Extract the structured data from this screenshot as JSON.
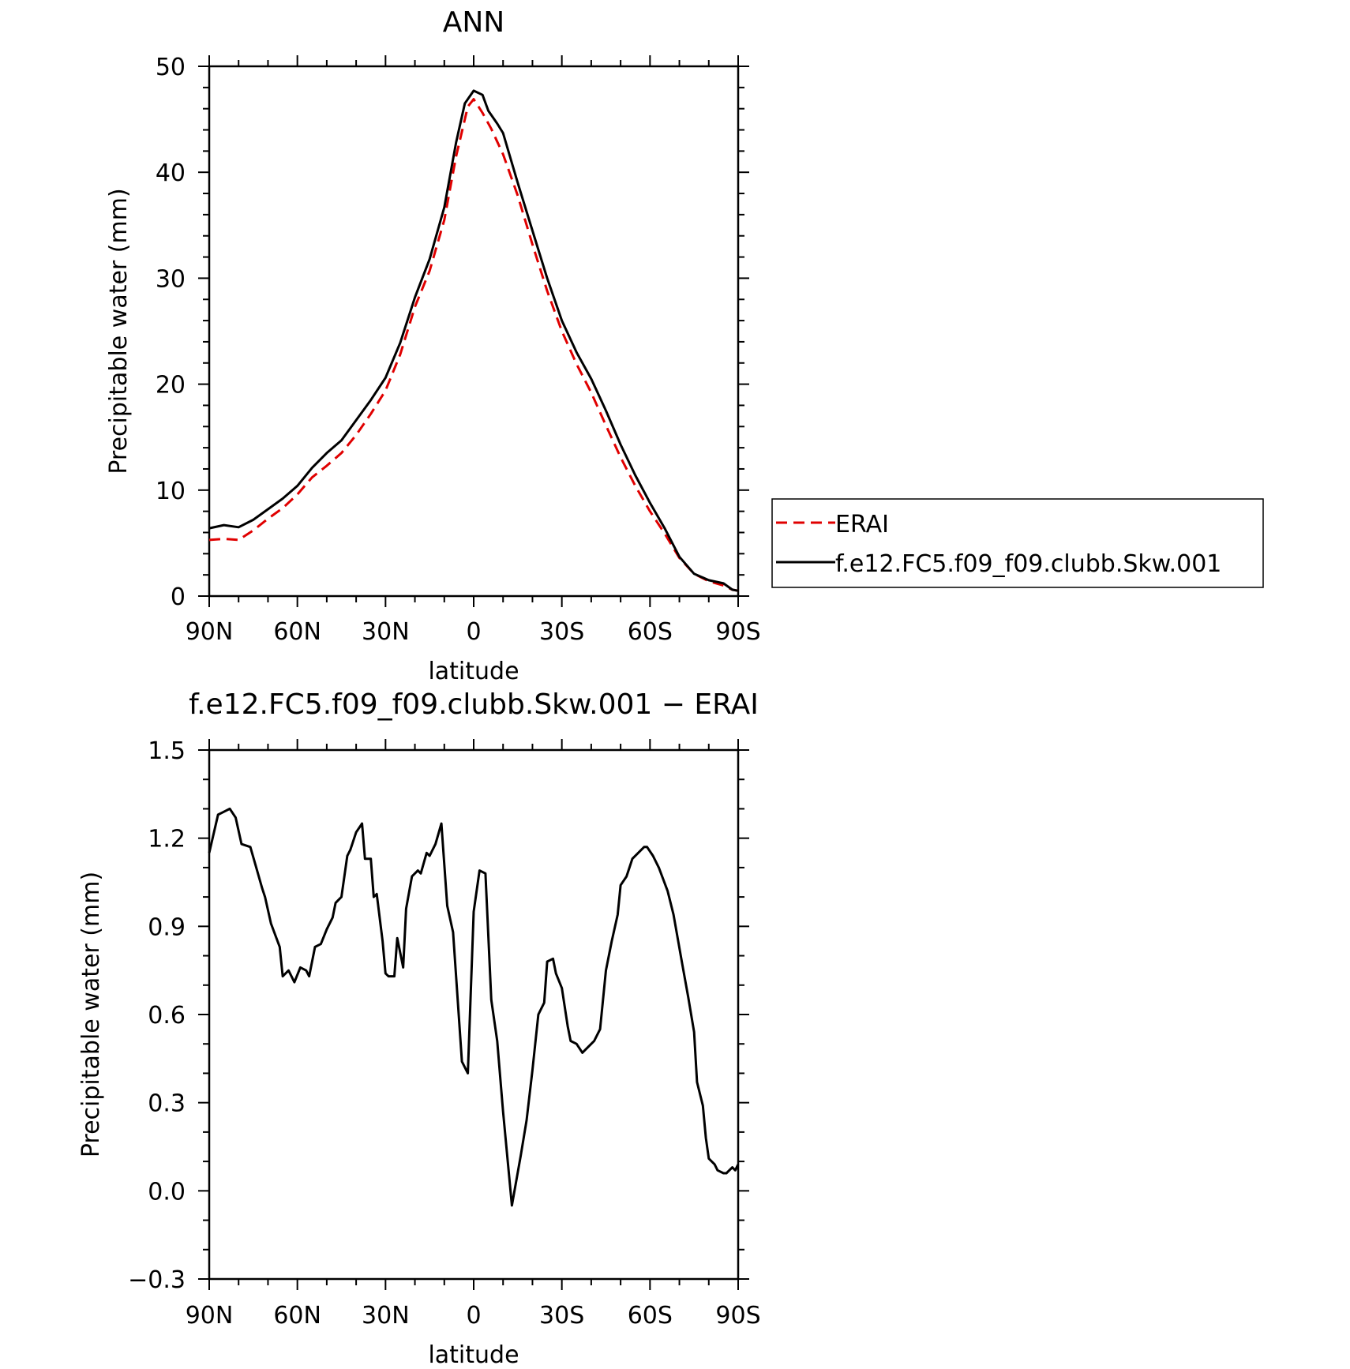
{
  "chart_data": [
    {
      "type": "line",
      "title": "ANN",
      "xlabel": "latitude",
      "ylabel": "Precipitable water (mm)",
      "xlim": [
        90,
        -90
      ],
      "ylim": [
        0,
        50
      ],
      "x_ticks": [
        90,
        60,
        30,
        0,
        -30,
        -60,
        -90
      ],
      "x_tick_labels": [
        "90N",
        "60N",
        "30N",
        "0",
        "30S",
        "60S",
        "90S"
      ],
      "y_ticks": [
        0,
        10,
        20,
        30,
        40,
        50
      ],
      "y_tick_labels": [
        "0",
        "10",
        "20",
        "30",
        "40",
        "50"
      ],
      "legend_position": "right",
      "series": [
        {
          "name": "ERAI",
          "color": "#e00000",
          "style": "dashed",
          "points": [
            [
              90,
              5.3
            ],
            [
              85,
              5.4
            ],
            [
              80,
              5.3
            ],
            [
              75,
              6.2
            ],
            [
              70,
              7.3
            ],
            [
              65,
              8.3
            ],
            [
              60,
              9.6
            ],
            [
              55,
              11.2
            ],
            [
              50,
              12.3
            ],
            [
              45,
              13.5
            ],
            [
              40,
              15.2
            ],
            [
              35,
              17.2
            ],
            [
              30,
              19.4
            ],
            [
              25,
              22.8
            ],
            [
              20,
              27.3
            ],
            [
              15,
              30.7
            ],
            [
              10,
              35.5
            ],
            [
              6,
              41.5
            ],
            [
              2,
              46.2
            ],
            [
              0,
              46.9
            ],
            [
              -3,
              45.6
            ],
            [
              -6,
              44.1
            ],
            [
              -10,
              41.7
            ],
            [
              -15,
              37.8
            ],
            [
              -20,
              33.2
            ],
            [
              -25,
              28.8
            ],
            [
              -30,
              25.0
            ],
            [
              -35,
              21.9
            ],
            [
              -40,
              19.2
            ],
            [
              -45,
              16.1
            ],
            [
              -50,
              13.1
            ],
            [
              -55,
              10.4
            ],
            [
              -60,
              8.0
            ],
            [
              -65,
              5.9
            ],
            [
              -70,
              3.6
            ],
            [
              -75,
              2.1
            ],
            [
              -80,
              1.4
            ],
            [
              -85,
              1.0
            ],
            [
              -88,
              0.6
            ],
            [
              -90,
              0.5
            ]
          ]
        },
        {
          "name": "f.e12.FC5.f09_f09.clubb.Skw.001",
          "color": "#000000",
          "style": "solid",
          "points": [
            [
              90,
              6.4
            ],
            [
              85,
              6.7
            ],
            [
              80,
              6.5
            ],
            [
              75,
              7.2
            ],
            [
              70,
              8.2
            ],
            [
              65,
              9.2
            ],
            [
              60,
              10.4
            ],
            [
              55,
              12.1
            ],
            [
              50,
              13.5
            ],
            [
              45,
              14.7
            ],
            [
              40,
              16.6
            ],
            [
              35,
              18.5
            ],
            [
              30,
              20.6
            ],
            [
              25,
              23.9
            ],
            [
              20,
              28.2
            ],
            [
              15,
              31.8
            ],
            [
              10,
              36.7
            ],
            [
              6,
              42.8
            ],
            [
              3,
              46.5
            ],
            [
              0,
              47.7
            ],
            [
              -3,
              47.3
            ],
            [
              -5,
              45.8
            ],
            [
              -8,
              44.6
            ],
            [
              -10,
              43.7
            ],
            [
              -15,
              39.0
            ],
            [
              -20,
              34.5
            ],
            [
              -25,
              30.0
            ],
            [
              -30,
              26.0
            ],
            [
              -35,
              23.0
            ],
            [
              -40,
              20.5
            ],
            [
              -45,
              17.5
            ],
            [
              -50,
              14.3
            ],
            [
              -55,
              11.4
            ],
            [
              -60,
              8.8
            ],
            [
              -65,
              6.4
            ],
            [
              -70,
              3.7
            ],
            [
              -75,
              2.1
            ],
            [
              -80,
              1.5
            ],
            [
              -85,
              1.2
            ],
            [
              -88,
              0.6
            ],
            [
              -90,
              0.5
            ]
          ]
        }
      ]
    },
    {
      "type": "line",
      "title": "f.e12.FC5.f09_f09.clubb.Skw.001 − ERAI",
      "xlabel": "latitude",
      "ylabel": "Precipitable water (mm)",
      "xlim": [
        90,
        -90
      ],
      "ylim": [
        -0.3,
        1.5
      ],
      "x_ticks": [
        90,
        60,
        30,
        0,
        -30,
        -60,
        -90
      ],
      "x_tick_labels": [
        "90N",
        "60N",
        "30N",
        "0",
        "30S",
        "60S",
        "90S"
      ],
      "y_ticks": [
        -0.3,
        0.0,
        0.3,
        0.6,
        0.9,
        1.2,
        1.5
      ],
      "y_tick_labels": [
        "−0.3",
        "0.0",
        "0.3",
        "0.6",
        "0.9",
        "1.2",
        "1.5"
      ],
      "series": [
        {
          "color": "#000000",
          "style": "solid",
          "points": [
            [
              90,
              1.15
            ],
            [
              87,
              1.28
            ],
            [
              85,
              1.29
            ],
            [
              83,
              1.3
            ],
            [
              81,
              1.27
            ],
            [
              79,
              1.18
            ],
            [
              76,
              1.17
            ],
            [
              74,
              1.1
            ],
            [
              72,
              1.03
            ],
            [
              71,
              1.0
            ],
            [
              69,
              0.91
            ],
            [
              66,
              0.83
            ],
            [
              65,
              0.73
            ],
            [
              63,
              0.75
            ],
            [
              61,
              0.71
            ],
            [
              59,
              0.76
            ],
            [
              57,
              0.75
            ],
            [
              56,
              0.73
            ],
            [
              54,
              0.83
            ],
            [
              52,
              0.84
            ],
            [
              50,
              0.89
            ],
            [
              48,
              0.93
            ],
            [
              47,
              0.98
            ],
            [
              45,
              1.0
            ],
            [
              43,
              1.14
            ],
            [
              42,
              1.16
            ],
            [
              40,
              1.22
            ],
            [
              38,
              1.25
            ],
            [
              37,
              1.13
            ],
            [
              35,
              1.13
            ],
            [
              34,
              1.0
            ],
            [
              33,
              1.01
            ],
            [
              31,
              0.85
            ],
            [
              30,
              0.74
            ],
            [
              29,
              0.73
            ],
            [
              27,
              0.73
            ],
            [
              26,
              0.86
            ],
            [
              24,
              0.76
            ],
            [
              23,
              0.96
            ],
            [
              21,
              1.07
            ],
            [
              19,
              1.09
            ],
            [
              18,
              1.08
            ],
            [
              16,
              1.15
            ],
            [
              15,
              1.14
            ],
            [
              13,
              1.18
            ],
            [
              11,
              1.25
            ],
            [
              9,
              0.97
            ],
            [
              7,
              0.88
            ],
            [
              4,
              0.44
            ],
            [
              2,
              0.4
            ],
            [
              0,
              0.95
            ],
            [
              -2,
              1.09
            ],
            [
              -4,
              1.08
            ],
            [
              -6,
              0.65
            ],
            [
              -8,
              0.51
            ],
            [
              -10,
              0.27
            ],
            [
              -13,
              -0.05
            ],
            [
              -16,
              0.12
            ],
            [
              -18,
              0.24
            ],
            [
              -20,
              0.41
            ],
            [
              -22,
              0.6
            ],
            [
              -24,
              0.64
            ],
            [
              -25,
              0.78
            ],
            [
              -27,
              0.79
            ],
            [
              -28,
              0.74
            ],
            [
              -30,
              0.69
            ],
            [
              -32,
              0.56
            ],
            [
              -33,
              0.51
            ],
            [
              -35,
              0.5
            ],
            [
              -37,
              0.47
            ],
            [
              -38,
              0.48
            ],
            [
              -40,
              0.5
            ],
            [
              -41,
              0.51
            ],
            [
              -43,
              0.55
            ],
            [
              -45,
              0.75
            ],
            [
              -47,
              0.85
            ],
            [
              -49,
              0.94
            ],
            [
              -50,
              1.04
            ],
            [
              -52,
              1.07
            ],
            [
              -54,
              1.13
            ],
            [
              -56,
              1.15
            ],
            [
              -58,
              1.17
            ],
            [
              -59,
              1.17
            ],
            [
              -61,
              1.14
            ],
            [
              -63,
              1.1
            ],
            [
              -66,
              1.02
            ],
            [
              -68,
              0.94
            ],
            [
              -71,
              0.77
            ],
            [
              -73,
              0.66
            ],
            [
              -75,
              0.54
            ],
            [
              -76,
              0.37
            ],
            [
              -78,
              0.29
            ],
            [
              -79,
              0.18
            ],
            [
              -80,
              0.11
            ],
            [
              -82,
              0.09
            ],
            [
              -83,
              0.07
            ],
            [
              -85,
              0.06
            ],
            [
              -86,
              0.06
            ],
            [
              -88,
              0.08
            ],
            [
              -89,
              0.07
            ],
            [
              -90,
              0.09
            ]
          ]
        }
      ]
    }
  ]
}
